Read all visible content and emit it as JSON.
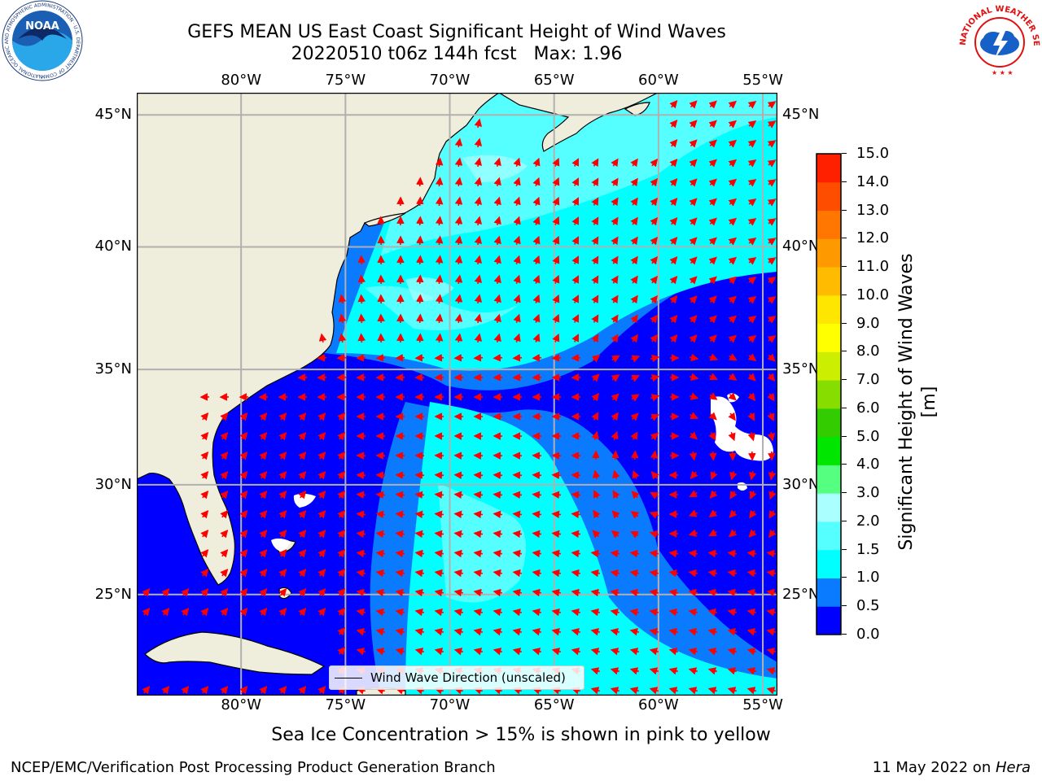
{
  "title": {
    "line1": "GEFS MEAN US East Coast Significant Height of Wind Waves",
    "line2": "20220510 t06z 144h fcst   Max: 1.96"
  },
  "logos": {
    "noaa_text": "NOAA",
    "noaa_ring": "NATIONAL OCEANIC AND ATMOSPHERIC ADMINISTRATION · U.S. DEPARTMENT OF COMMERCE",
    "nws_ring": "NATIONAL WEATHER SERVICE"
  },
  "map": {
    "lon_labels": [
      "80°W",
      "75°W",
      "70°W",
      "65°W",
      "60°W",
      "55°W"
    ],
    "lat_labels": [
      "45°N",
      "40°N",
      "35°N",
      "30°N",
      "25°N"
    ],
    "lon_values": [
      -80,
      -75,
      -70,
      -65,
      -60,
      -55
    ],
    "lat_values": [
      45,
      40,
      35,
      30,
      25
    ],
    "extent": {
      "lon_min": -85,
      "lon_max": -54.3,
      "lat_min": 20.2,
      "lat_max": 45.8
    },
    "land_color": "#efeedc",
    "grid_color": "#b0b0b0",
    "arrow_color": "#ff0000",
    "legend_label": "Wind Wave Direction (unscaled)"
  },
  "colorbar": {
    "label": "Significant Height of Wind Waves [m]",
    "ticks": [
      "0.0",
      "0.5",
      "1.0",
      "1.5",
      "2.0",
      "3.0",
      "4.0",
      "5.0",
      "6.0",
      "7.0",
      "8.0",
      "9.0",
      "10.0",
      "11.0",
      "12.0",
      "13.0",
      "14.0",
      "15.0"
    ],
    "colors": [
      "#0000ff",
      "#0a7bff",
      "#00ffff",
      "#55ffff",
      "#aaffff",
      "#55ff7f",
      "#00e600",
      "#33cc00",
      "#88dd00",
      "#ccee00",
      "#ffff00",
      "#ffe600",
      "#ffbb00",
      "#ff9900",
      "#ff7700",
      "#ff4d00",
      "#ff2000"
    ]
  },
  "footer": {
    "sea_ice_note": "Sea Ice Concentration > 15% is shown in pink to yellow",
    "branch": "NCEP/EMC/Verification Post Processing Product Generation Branch",
    "date": "11 May 2022 on ",
    "machine": "Hera"
  }
}
